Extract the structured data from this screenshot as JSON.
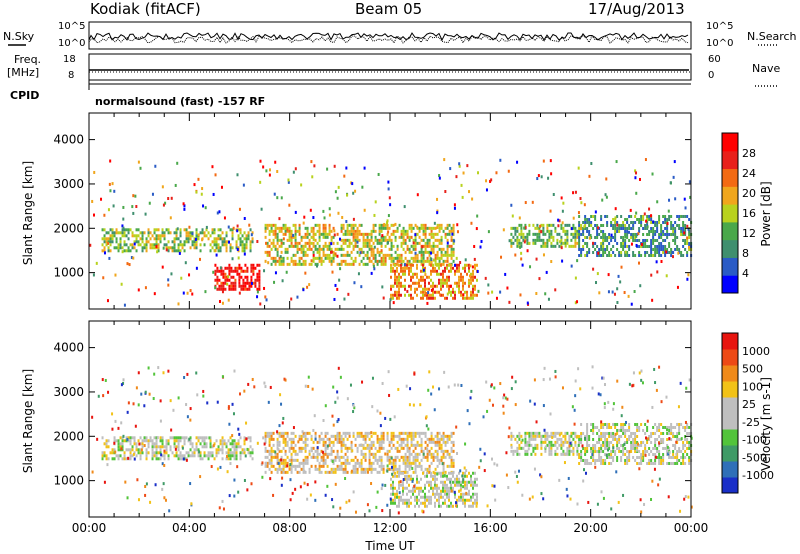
{
  "header": {
    "radar": "Kodiak (fitACF)",
    "beam": "Beam 05",
    "date": "17/Aug/2013"
  },
  "aux_panels": {
    "noise": {
      "left_label": "N.Sky",
      "right_label": "N.Search",
      "left_ticks": [
        "10^5",
        "10^0"
      ],
      "right_ticks": [
        "10^5",
        "10^0"
      ]
    },
    "freq": {
      "left_label_1": "Freq.",
      "left_label_2": "[MHz]",
      "right_label": "Nave",
      "left_ticks": [
        "18",
        "8"
      ],
      "right_ticks": [
        "60",
        "0"
      ]
    },
    "cpid": {
      "label": "CPID",
      "text": "normalsound (fast) -157 RF"
    }
  },
  "colors": {
    "power_scale": [
      "#0000ff",
      "#2a5bc6",
      "#3f8f6e",
      "#49a84a",
      "#b8d21e",
      "#f0a61c",
      "#f36a12",
      "#e8201a",
      "#ff0000"
    ],
    "velocity_scale": [
      "#1a2fc8",
      "#2f6fb8",
      "#3f9a66",
      "#52c43a",
      "#bfbfbf",
      "#bfbfbf",
      "#f2c218",
      "#f08a1a",
      "#ee4a16",
      "#e8150f"
    ]
  },
  "chart_data": [
    {
      "type": "heatmap",
      "title": "",
      "xlabel": "Time UT",
      "ylabel": "Slant Range [km]",
      "x_ticks": [
        "00:00",
        "04:00",
        "08:00",
        "12:00",
        "16:00",
        "20:00",
        "00:00"
      ],
      "y_ticks": [
        1000,
        2000,
        3000,
        4000
      ],
      "xlim": [
        0,
        24
      ],
      "ylim": [
        180,
        4600
      ],
      "colorbar": {
        "label": "Power [dB]",
        "ticks": [
          "28",
          "24",
          "20",
          "16",
          "12",
          "8",
          "4"
        ],
        "range": [
          0,
          30
        ]
      },
      "features": [
        {
          "x": [
            0.5,
            6.5
          ],
          "y": [
            1500,
            2000
          ],
          "value": 14
        },
        {
          "x": [
            5.0,
            6.8
          ],
          "y": [
            600,
            1200
          ],
          "value": 27
        },
        {
          "x": [
            7.0,
            14.5
          ],
          "y": [
            1200,
            2100
          ],
          "value": 16
        },
        {
          "x": [
            12.0,
            15.5
          ],
          "y": [
            450,
            1200
          ],
          "value": 20
        },
        {
          "x": [
            16.8,
            19.5
          ],
          "y": [
            1600,
            2100
          ],
          "value": 12
        },
        {
          "x": [
            19.5,
            24.0
          ],
          "y": [
            1400,
            2300
          ],
          "value": 9
        }
      ]
    },
    {
      "type": "heatmap",
      "title": "",
      "xlabel": "Time UT",
      "ylabel": "Slant Range [km]",
      "x_ticks": [
        "00:00",
        "04:00",
        "08:00",
        "12:00",
        "16:00",
        "20:00",
        "00:00"
      ],
      "y_ticks": [
        1000,
        2000,
        3000,
        4000
      ],
      "xlim": [
        0,
        24
      ],
      "ylim": [
        180,
        4600
      ],
      "colorbar": {
        "label": "Velocity [m s-1]",
        "ticks": [
          "1000",
          "500",
          "100",
          "25",
          "-25",
          "-100",
          "-500",
          "-1000"
        ],
        "range": [
          -1000,
          1000
        ]
      },
      "features": [
        {
          "x": [
            0.5,
            6.5
          ],
          "y": [
            1500,
            2000
          ],
          "value": 0
        },
        {
          "x": [
            7.0,
            14.5
          ],
          "y": [
            1200,
            2100
          ],
          "value": 180
        },
        {
          "x": [
            12.0,
            15.5
          ],
          "y": [
            450,
            1200
          ],
          "value": 0
        },
        {
          "x": [
            16.8,
            19.5
          ],
          "y": [
            1600,
            2100
          ],
          "value": 0
        },
        {
          "x": [
            19.5,
            24.0
          ],
          "y": [
            1400,
            2300
          ],
          "value": 0
        }
      ]
    }
  ]
}
